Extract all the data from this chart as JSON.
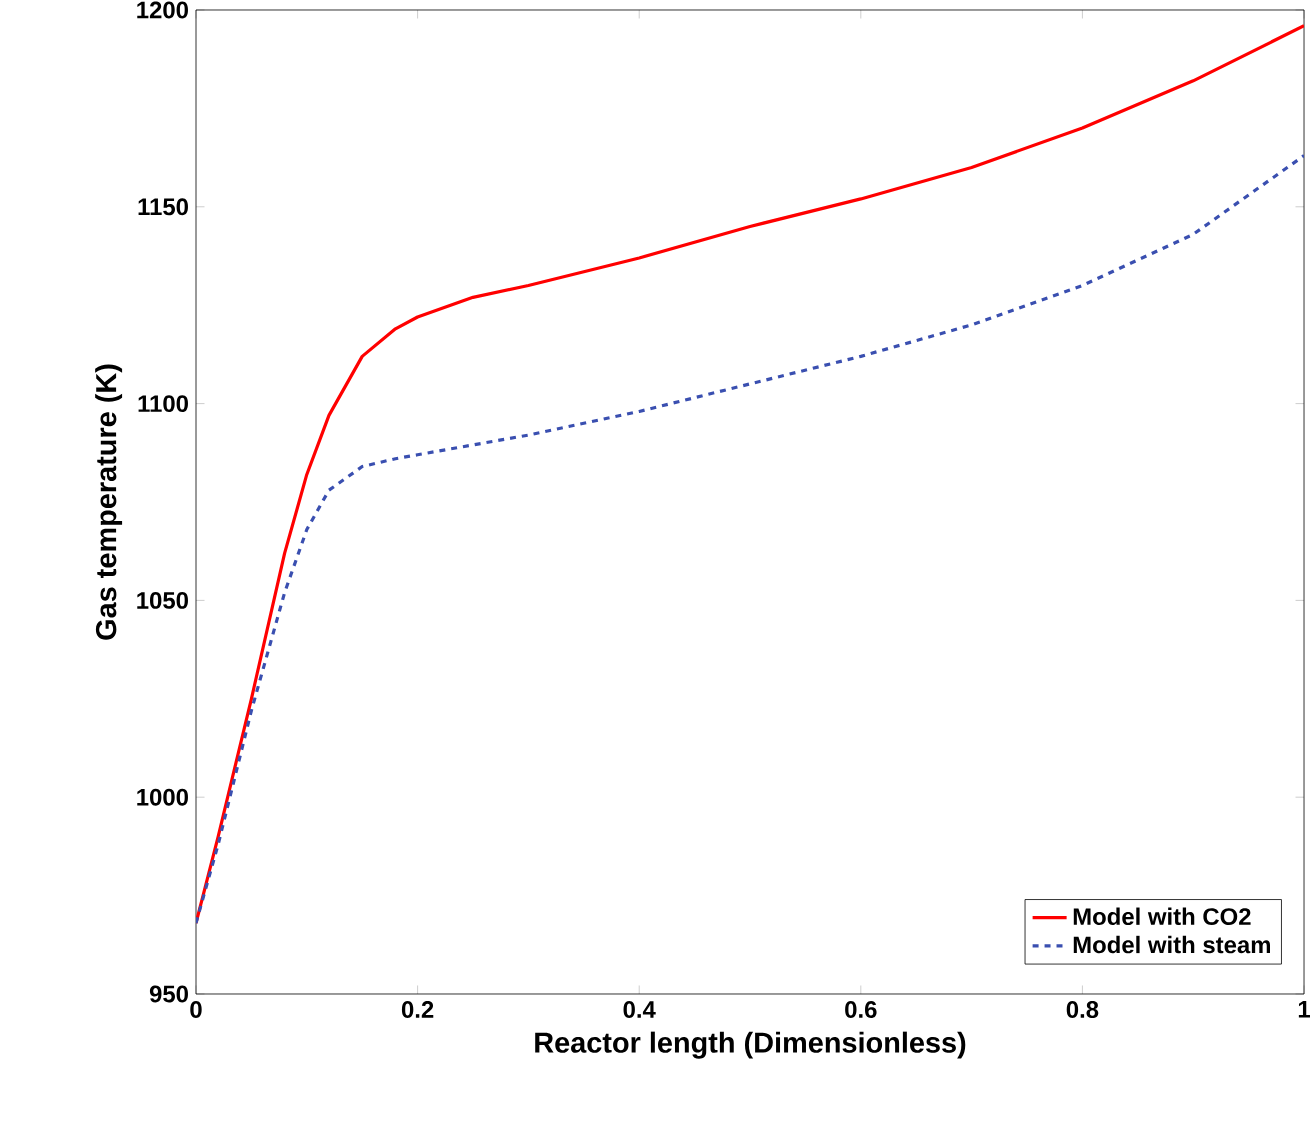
{
  "chart_data": {
    "type": "line",
    "xlabel": "Reactor length (Dimensionless)",
    "ylabel": "Gas temperature (K)",
    "xlim": [
      0,
      1
    ],
    "ylim": [
      950,
      1200
    ],
    "xticks": [
      0,
      0.2,
      0.4,
      0.6,
      0.8,
      1
    ],
    "yticks": [
      950,
      1000,
      1050,
      1100,
      1150,
      1200
    ],
    "grid": false,
    "legend": "bottom right",
    "series": [
      {
        "name": "Model with CO2",
        "color": "#ff0000",
        "line_style": "solid",
        "x": [
          0,
          0.02,
          0.05,
          0.08,
          0.1,
          0.12,
          0.15,
          0.18,
          0.2,
          0.25,
          0.3,
          0.4,
          0.5,
          0.6,
          0.7,
          0.8,
          0.9,
          1.0
        ],
        "values": [
          968,
          990,
          1025,
          1062,
          1082,
          1097,
          1112,
          1119,
          1122,
          1127,
          1130,
          1137,
          1145,
          1152,
          1160,
          1170,
          1182,
          1196
        ]
      },
      {
        "name": "Model with steam",
        "color": "#3a4fb0",
        "line_style": "dashed",
        "x": [
          0,
          0.02,
          0.05,
          0.08,
          0.1,
          0.12,
          0.15,
          0.18,
          0.2,
          0.3,
          0.4,
          0.5,
          0.6,
          0.7,
          0.8,
          0.9,
          1.0
        ],
        "values": [
          968,
          988,
          1022,
          1052,
          1068,
          1078,
          1084,
          1086,
          1087,
          1092,
          1098,
          1105,
          1112,
          1120,
          1130,
          1143,
          1163
        ]
      }
    ]
  }
}
